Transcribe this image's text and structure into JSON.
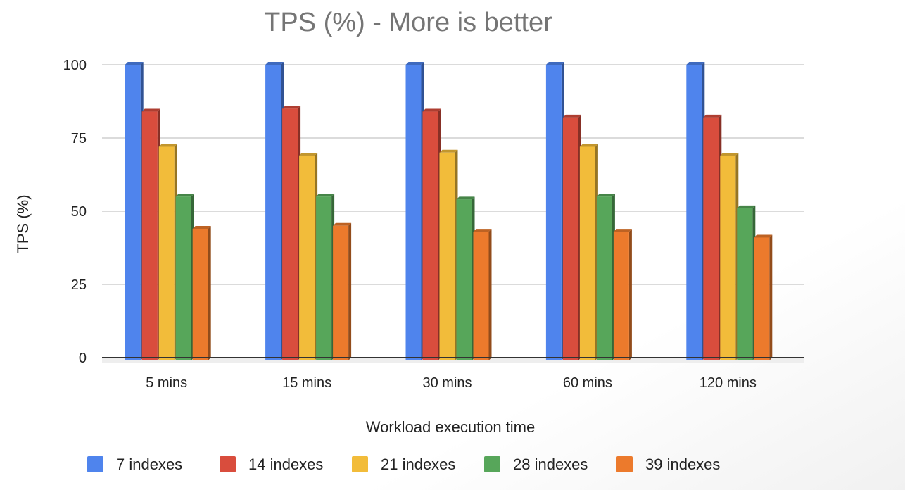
{
  "chart_data": {
    "type": "bar",
    "title": "TPS (%) - More is better",
    "xlabel": "Workload execution time",
    "ylabel": "TPS (%)",
    "categories": [
      "5 mins",
      "15 mins",
      "30 mins",
      "60 mins",
      "120 mins"
    ],
    "yticks": [
      0,
      25,
      50,
      75,
      100
    ],
    "ylim": [
      0,
      100
    ],
    "grid": true,
    "legend_position": "bottom",
    "series": [
      {
        "name": "7 indexes",
        "color": "#4f84ed",
        "values": [
          100,
          100,
          100,
          100,
          100
        ]
      },
      {
        "name": "14 indexes",
        "color": "#d94d3d",
        "values": [
          84,
          85,
          84,
          82,
          82
        ]
      },
      {
        "name": "21 indexes",
        "color": "#f2bc3a",
        "values": [
          72,
          69,
          70,
          72,
          69
        ]
      },
      {
        "name": "28 indexes",
        "color": "#57a65a",
        "values": [
          55,
          55,
          54,
          55,
          51
        ]
      },
      {
        "name": "39 indexes",
        "color": "#ec7a2c",
        "values": [
          44,
          45,
          43,
          43,
          41
        ]
      }
    ]
  }
}
